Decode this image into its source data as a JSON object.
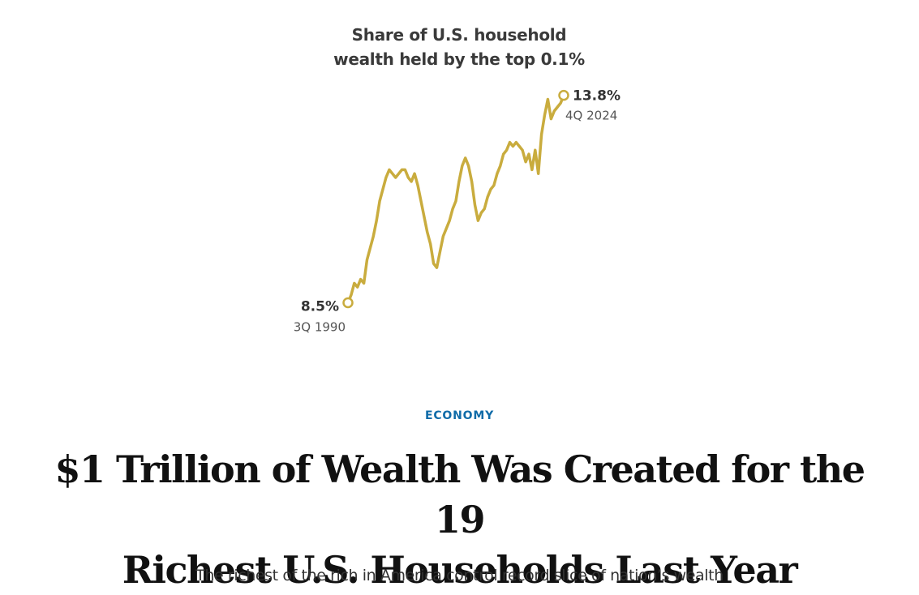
{
  "chart_data": {
    "type": "line",
    "title": [
      "Share of U.S. household",
      "wealth held by the top 0.1%"
    ],
    "series": [
      {
        "values": [
          8.5,
          8.7,
          9.0,
          8.9,
          9.1,
          9.0,
          9.6,
          9.9,
          10.2,
          10.6,
          11.1,
          11.4,
          11.7,
          11.9,
          11.8,
          11.7,
          11.8,
          11.9,
          11.9,
          11.7,
          11.6,
          11.8,
          11.5,
          11.1,
          10.7,
          10.3,
          10.0,
          9.5,
          9.4,
          9.8,
          10.2,
          10.4,
          10.6,
          10.9,
          11.1,
          11.6,
          12.0,
          12.2,
          12.0,
          11.6,
          11.0,
          10.6,
          10.8,
          10.9,
          11.2,
          11.4,
          11.5,
          11.8,
          12.0,
          12.3,
          12.4,
          12.6,
          12.5,
          12.6,
          12.5,
          12.4,
          12.1,
          12.3,
          11.9,
          12.4,
          11.8,
          12.8,
          13.3,
          13.7,
          13.2,
          13.4,
          13.5,
          13.6,
          13.8
        ]
      }
    ],
    "start_label": {
      "value": "8.5%",
      "date": "3Q 1990"
    },
    "end_label": {
      "value": "13.8%",
      "date": "4Q 2024"
    },
    "ylim": [
      8.2,
      14.0
    ],
    "color": "#c9ac3e",
    "grid": false,
    "legend": "none"
  },
  "article": {
    "section": "ECONOMY",
    "headline": [
      "$1 Trillion of Wealth Was Created for the 19",
      "Richest U.S. Households Last Year"
    ],
    "dek": "The richest of the rich in America control record slice of nation’s wealth"
  },
  "colors": {
    "line": "#c9ac3e",
    "section": "#0f6ba8",
    "headline": "#111111"
  }
}
